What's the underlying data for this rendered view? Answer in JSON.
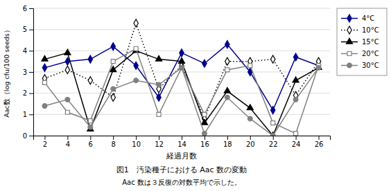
{
  "chart_data": {
    "type": "line",
    "title": "図1　汚染種子における Aac 数の変動",
    "subtitle": "Aac 数は３反復の対数平均で示した。",
    "x_label": "経過月数",
    "y_label": "Aac数（log cfu/100 seeds）",
    "x": [
      2,
      4,
      6,
      8,
      10,
      12,
      14,
      16,
      18,
      20,
      22,
      24,
      26
    ],
    "series": [
      {
        "name": "4°C",
        "color": "#00008B",
        "marker": "diamond",
        "line_style": "solid",
        "values": [
          3.2,
          3.5,
          3.6,
          4.2,
          3.3,
          1.8,
          3.9,
          3.4,
          4.3,
          3.0,
          1.2,
          3.7,
          3.3
        ]
      },
      {
        "name": "10°C",
        "color": "#000000",
        "marker": "diamond-open",
        "line_style": "dotted",
        "values": [
          2.7,
          3.1,
          2.6,
          1.8,
          5.3,
          2.2,
          3.3,
          0.8,
          3.5,
          3.5,
          3.6,
          1.9,
          3.5
        ]
      },
      {
        "name": "15°C",
        "color": "#000000",
        "marker": "triangle",
        "line_style": "solid",
        "values": [
          3.6,
          3.9,
          0.3,
          3.1,
          4.0,
          3.6,
          3.5,
          0.6,
          2.1,
          1.3,
          0.0,
          2.6,
          3.2
        ]
      },
      {
        "name": "20°C",
        "color": "#808080",
        "marker": "square-open",
        "line_style": "solid",
        "values": [
          2.5,
          1.1,
          0.7,
          3.5,
          4.1,
          1.0,
          3.2,
          1.0,
          3.1,
          3.3,
          0.6,
          0.1,
          3.3
        ]
      },
      {
        "name": "30°C",
        "color": "#808080",
        "marker": "circle",
        "line_style": "solid",
        "values": [
          1.4,
          1.7,
          0.4,
          2.2,
          2.6,
          2.4,
          3.2,
          0.1,
          1.8,
          0.8,
          0.0,
          1.7,
          3.2
        ]
      }
    ],
    "xlim": [
      1,
      27
    ],
    "xticks": [
      2,
      4,
      6,
      8,
      10,
      12,
      14,
      16,
      18,
      20,
      22,
      24,
      26
    ],
    "ylim": [
      0,
      6
    ],
    "yticks": [
      0,
      1,
      2,
      3,
      4,
      5,
      6
    ],
    "grid": true,
    "legend": "right"
  }
}
